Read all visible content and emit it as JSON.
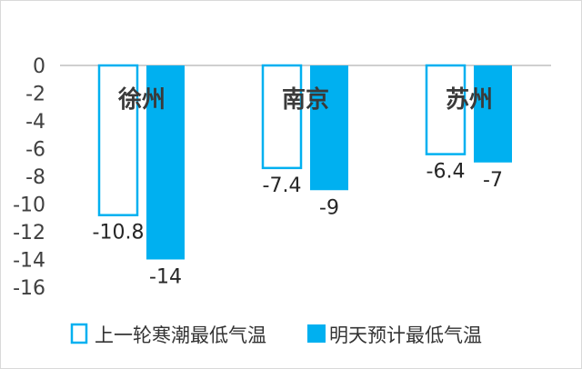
{
  "chart_data": {
    "type": "bar",
    "categories": [
      "徐州",
      "南京",
      "苏州"
    ],
    "series": [
      {
        "name": "上一轮寒潮最低气温",
        "values": [
          -10.8,
          -7.4,
          -6.4
        ],
        "style": "outline",
        "color": "#00b0f0"
      },
      {
        "name": "明天预计最低气温",
        "values": [
          -14,
          -9,
          -7
        ],
        "style": "filled",
        "color": "#00b0f0"
      }
    ],
    "data_labels": [
      [
        "-10.8",
        "-7.4",
        "-6.4"
      ],
      [
        "-14",
        "-9",
        "-7"
      ]
    ],
    "yticks": [
      "0",
      "-2",
      "-4",
      "-6",
      "-8",
      "-10",
      "-12",
      "-14",
      "-16"
    ],
    "ylim": [
      -16,
      0
    ],
    "grid": false,
    "legend_position": "bottom"
  }
}
